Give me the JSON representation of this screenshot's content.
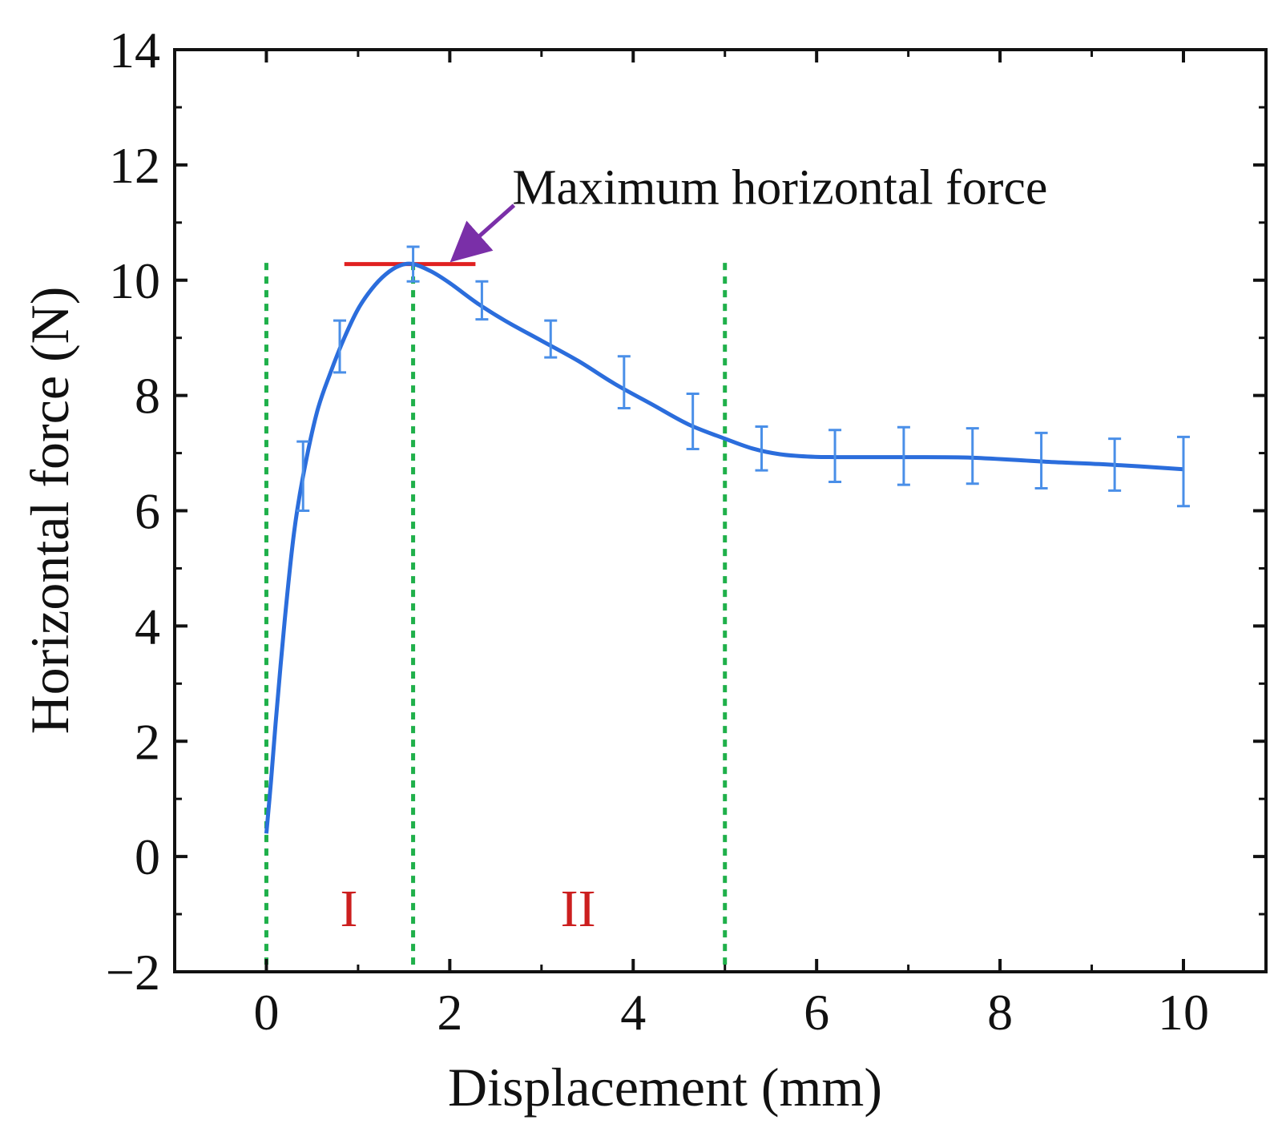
{
  "chart_data": {
    "type": "line",
    "title": "",
    "xlabel": "Displacement (mm)",
    "ylabel": "Horizontal force (N)",
    "xlim": [
      -1,
      10.9
    ],
    "ylim": [
      -2,
      14
    ],
    "xticks": [
      0,
      2,
      4,
      6,
      8,
      10
    ],
    "yticks": [
      -2,
      0,
      2,
      4,
      6,
      8,
      10,
      12,
      14
    ],
    "xtick_labels": [
      "0",
      "2",
      "4",
      "6",
      "8",
      "10"
    ],
    "ytick_labels": [
      "−2",
      "0",
      "2",
      "4",
      "6",
      "8",
      "10",
      "12",
      "14"
    ],
    "grid": false,
    "series": [
      {
        "name": "Horizontal force",
        "color": "#2b6ddc",
        "x": [
          0.0,
          0.05,
          0.1,
          0.2,
          0.3,
          0.4,
          0.55,
          0.7,
          0.85,
          1.0,
          1.15,
          1.3,
          1.45,
          1.6,
          1.8,
          2.0,
          2.3,
          2.6,
          3.0,
          3.4,
          3.8,
          4.2,
          4.6,
          5.0,
          5.3,
          5.6,
          5.9,
          6.2,
          6.5,
          7.0,
          7.7,
          8.5,
          9.2,
          10.0
        ],
        "values": [
          0.4,
          1.3,
          2.3,
          4.1,
          5.6,
          6.6,
          7.7,
          8.4,
          9.0,
          9.5,
          9.85,
          10.1,
          10.25,
          10.28,
          10.15,
          9.95,
          9.6,
          9.3,
          8.95,
          8.6,
          8.2,
          7.85,
          7.5,
          7.25,
          7.08,
          6.98,
          6.94,
          6.93,
          6.93,
          6.93,
          6.92,
          6.85,
          6.8,
          6.72
        ]
      }
    ],
    "error_bars": {
      "x": [
        0.4,
        0.8,
        1.6,
        2.35,
        3.1,
        3.9,
        4.65,
        5.4,
        6.2,
        6.95,
        7.7,
        8.45,
        9.25,
        10.0
      ],
      "y": [
        6.6,
        8.85,
        10.28,
        9.65,
        8.98,
        8.23,
        7.55,
        7.08,
        6.95,
        6.95,
        6.95,
        6.87,
        6.8,
        6.68
      ],
      "err": [
        0.6,
        0.45,
        0.3,
        0.33,
        0.32,
        0.45,
        0.48,
        0.38,
        0.45,
        0.5,
        0.48,
        0.48,
        0.45,
        0.6
      ]
    },
    "reference_lines": {
      "color": "#1fb04a",
      "vertical_x": [
        0.0,
        1.6,
        5.0
      ],
      "top_y": 10.3
    },
    "max_line": {
      "color": "#e02020",
      "y": 10.28,
      "x_start": 0.85,
      "x_end": 2.28
    },
    "annotations": [
      {
        "text": "Maximum horizontal force",
        "anchor_x": 5.6,
        "anchor_y": 11.6,
        "arrow_from": [
          2.7,
          11.3
        ],
        "arrow_to": [
          2.1,
          10.45
        ],
        "arrow_color": "#7a2fa8"
      }
    ],
    "regions": [
      {
        "label": "I",
        "x": 0.9,
        "y": -0.9,
        "color": "#cc1f1f"
      },
      {
        "label": "II",
        "x": 3.4,
        "y": -0.9,
        "color": "#cc1f1f"
      }
    ]
  }
}
